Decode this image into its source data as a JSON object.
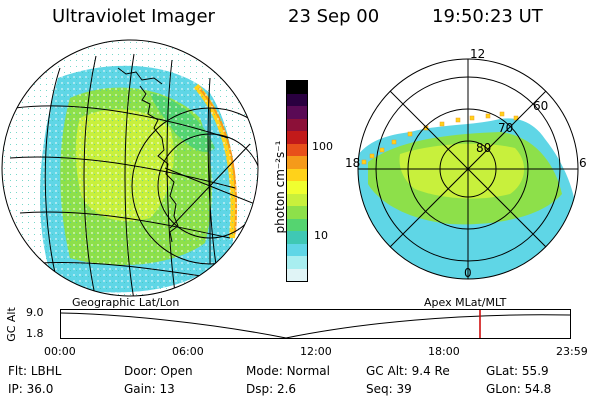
{
  "header": {
    "instrument": "Ultraviolet Imager",
    "date": "23 Sep 00",
    "time": "19:50:23 UT"
  },
  "colorbar": {
    "unit_label": "photon cm⁻²s⁻¹",
    "ticks": [
      "100",
      "10"
    ],
    "colors": [
      "#000000",
      "#2a0040",
      "#5a0a55",
      "#8c1038",
      "#c21a1a",
      "#e8501a",
      "#f59a1a",
      "#ffd21a",
      "#f0ff30",
      "#c8f03c",
      "#8de04a",
      "#55d470",
      "#3fc8b4",
      "#5fd6e6",
      "#a8eef0",
      "#e0f4f6"
    ]
  },
  "polar_plot": {
    "lat_labels": [
      "80",
      "70",
      "60"
    ],
    "mlt_labels": [
      "12",
      "18",
      "6",
      "0"
    ]
  },
  "timeline": {
    "ylabel": "GC Alt",
    "y_ticks": [
      "9.0",
      "1.8"
    ],
    "left_title": "Geographic Lat/Lon",
    "right_title": "Apex MLat/MLT",
    "x_ticks": [
      "00:00",
      "06:00",
      "12:00",
      "18:00",
      "23:59"
    ],
    "marker_color": "#cc0000"
  },
  "info": {
    "row1": [
      {
        "label": "Flt:",
        "value": "LBHL"
      },
      {
        "label": "Door:",
        "value": "Open"
      },
      {
        "label": "Mode:",
        "value": "Normal"
      },
      {
        "label": "GC Alt:",
        "value": "9.4 Re"
      },
      {
        "label": "GLat:",
        "value": "55.9"
      }
    ],
    "row2": [
      {
        "label": "IP:",
        "value": "36.0"
      },
      {
        "label": "Gain:",
        "value": "13"
      },
      {
        "label": "Dsp:",
        "value": "2.6"
      },
      {
        "label": "Seq:",
        "value": "39"
      },
      {
        "label": "GLon:",
        "value": "54.8"
      }
    ]
  }
}
